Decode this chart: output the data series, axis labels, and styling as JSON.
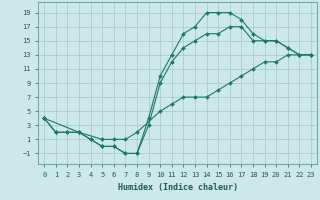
{
  "xlabel": "Humidex (Indice chaleur)",
  "bg_color": "#cce8e8",
  "grid_color": "#aacccc",
  "line_color": "#1a7a6a",
  "xlim": [
    -0.5,
    23.5
  ],
  "ylim": [
    -2.5,
    20.5
  ],
  "xticks": [
    0,
    1,
    2,
    3,
    4,
    5,
    6,
    7,
    8,
    9,
    10,
    11,
    12,
    13,
    14,
    15,
    16,
    17,
    18,
    19,
    20,
    21,
    22,
    23
  ],
  "yticks": [
    -1,
    1,
    3,
    5,
    7,
    9,
    11,
    13,
    15,
    17,
    19
  ],
  "line1_x": [
    0,
    1,
    2,
    3,
    4,
    5,
    6,
    7,
    8,
    9,
    10,
    11,
    12,
    13,
    14,
    15,
    16,
    17,
    18,
    19,
    20,
    21,
    22,
    23
  ],
  "line1_y": [
    4,
    2,
    2,
    2,
    1,
    0,
    0,
    -1,
    -1,
    4,
    10,
    13,
    16,
    17,
    19,
    19,
    19,
    18,
    16,
    15,
    15,
    14,
    13,
    13
  ],
  "line2_x": [
    0,
    1,
    2,
    3,
    4,
    5,
    6,
    7,
    8,
    9,
    10,
    11,
    12,
    13,
    14,
    15,
    16,
    17,
    18,
    19,
    20,
    21,
    22,
    23
  ],
  "line2_y": [
    4,
    2,
    2,
    2,
    1,
    0,
    0,
    -1,
    -1,
    3,
    9,
    12,
    14,
    15,
    16,
    16,
    17,
    17,
    15,
    15,
    15,
    14,
    13,
    13
  ],
  "line3_x": [
    0,
    3,
    5,
    6,
    7,
    8,
    10,
    11,
    12,
    13,
    14,
    15,
    16,
    17,
    18,
    19,
    20,
    21,
    22,
    23
  ],
  "line3_y": [
    4,
    2,
    1,
    1,
    1,
    2,
    5,
    6,
    7,
    7,
    7,
    8,
    9,
    10,
    11,
    12,
    12,
    13,
    13,
    13
  ]
}
